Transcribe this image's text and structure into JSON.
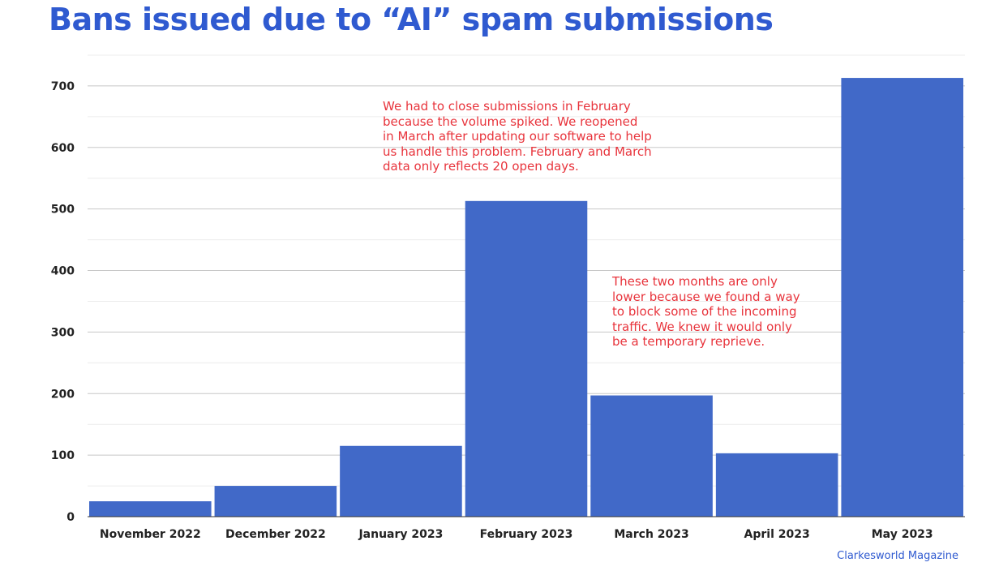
{
  "title": "Bans issued due to “AI” spam submissions",
  "source": "Clarkesworld Magazine",
  "colors": {
    "bar": "#4169c8",
    "title": "#2f5ad0",
    "annotation": "#e8343c"
  },
  "chart_data": {
    "type": "bar",
    "title": "Bans issued due to “AI” spam submissions",
    "xlabel": "",
    "ylabel": "",
    "categories": [
      "November 2022",
      "December 2022",
      "January 2023",
      "February 2023",
      "March 2023",
      "April 2023",
      "May 2023"
    ],
    "values": [
      25,
      50,
      115,
      513,
      197,
      103,
      713
    ],
    "ylim": [
      0,
      750
    ],
    "yticks": [
      0,
      100,
      200,
      300,
      400,
      500,
      600,
      700
    ],
    "grid": true,
    "annotations": [
      "We had to close submissions in February\nbecause the volume spiked. We reopened\nin March after updating our software to help\nus handle this problem. February and March\ndata only reflects 20 open days.",
      "These two months are only\nlower because we found a way\nto block some of the incoming\ntraffic. We knew it would only\nbe a temporary reprieve."
    ]
  }
}
